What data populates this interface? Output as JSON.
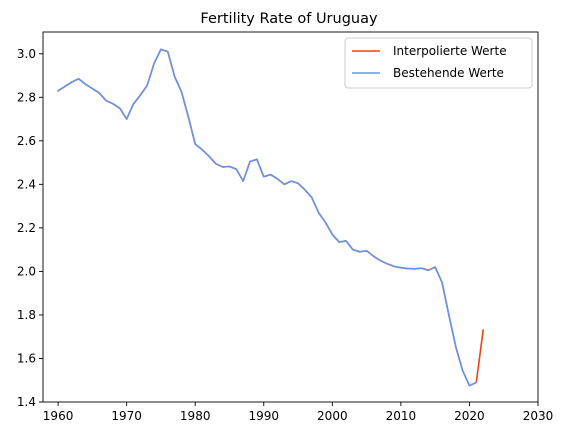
{
  "chart_data": {
    "type": "line",
    "title": "Fertility Rate of Uruguay",
    "xlabel": "",
    "ylabel": "",
    "xlim": [
      1957.8,
      2030
    ],
    "ylim": [
      1.4,
      3.1
    ],
    "xticks": [
      1960,
      1970,
      1980,
      1990,
      2000,
      2010,
      2020,
      2030
    ],
    "yticks": [
      1.4,
      1.6,
      1.8,
      2.0,
      2.2,
      2.4,
      2.6,
      2.8,
      3.0
    ],
    "xtick_labels": [
      "1960",
      "1970",
      "1980",
      "1990",
      "2000",
      "2010",
      "2020",
      "2030"
    ],
    "ytick_labels": [
      "1.4",
      "1.6",
      "1.8",
      "2.0",
      "2.2",
      "2.4",
      "2.6",
      "2.8",
      "3.0"
    ],
    "grid": false,
    "legend_position": "top-right",
    "series": [
      {
        "name": "Interpolierte Werte",
        "color": "#ee4411",
        "x": [
          1960,
          1961,
          1962,
          1963,
          1964,
          1965,
          1966,
          1967,
          1968,
          1969,
          1970,
          1971,
          1972,
          1973,
          1974,
          1975,
          1976,
          1977,
          1978,
          1979,
          1980,
          1981,
          1982,
          1983,
          1984,
          1985,
          1986,
          1987,
          1988,
          1989,
          1990,
          1991,
          1992,
          1993,
          1994,
          1995,
          1996,
          1997,
          1998,
          1999,
          2000,
          2001,
          2002,
          2003,
          2004,
          2005,
          2006,
          2007,
          2008,
          2009,
          2010,
          2011,
          2012,
          2013,
          2014,
          2015,
          2016,
          2017,
          2018,
          2019,
          2020,
          2021,
          2022
        ],
        "y": [
          2.83,
          2.85,
          2.87,
          2.885,
          2.86,
          2.84,
          2.82,
          2.785,
          2.77,
          2.75,
          2.7,
          2.77,
          2.81,
          2.855,
          2.955,
          3.02,
          3.01,
          2.895,
          2.825,
          2.71,
          2.585,
          2.56,
          2.53,
          2.495,
          2.48,
          2.482,
          2.47,
          2.415,
          2.505,
          2.515,
          2.435,
          2.445,
          2.425,
          2.4,
          2.415,
          2.405,
          2.375,
          2.34,
          2.27,
          2.225,
          2.17,
          2.135,
          2.14,
          2.1,
          2.09,
          2.095,
          2.07,
          2.05,
          2.035,
          2.023,
          2.017,
          2.013,
          2.012,
          2.015,
          2.005,
          2.02,
          1.95,
          1.8,
          1.655,
          1.545,
          1.475,
          1.49,
          1.73
        ]
      },
      {
        "name": "Bestehende Werte",
        "color": "#6495ed",
        "x": [
          1960,
          1961,
          1962,
          1963,
          1964,
          1965,
          1966,
          1967,
          1968,
          1969,
          1970,
          1971,
          1972,
          1973,
          1974,
          1975,
          1976,
          1977,
          1978,
          1979,
          1980,
          1981,
          1982,
          1983,
          1984,
          1985,
          1986,
          1987,
          1988,
          1989,
          1990,
          1991,
          1992,
          1993,
          1994,
          1995,
          1996,
          1997,
          1998,
          1999,
          2000,
          2001,
          2002,
          2003,
          2004,
          2005,
          2006,
          2007,
          2008,
          2009,
          2010,
          2011,
          2012,
          2013,
          2014,
          2015,
          2016,
          2017,
          2018,
          2019,
          2020,
          2021
        ],
        "y": [
          2.83,
          2.85,
          2.87,
          2.885,
          2.86,
          2.84,
          2.82,
          2.785,
          2.77,
          2.75,
          2.7,
          2.77,
          2.81,
          2.855,
          2.955,
          3.02,
          3.01,
          2.895,
          2.825,
          2.71,
          2.585,
          2.56,
          2.53,
          2.495,
          2.48,
          2.482,
          2.47,
          2.415,
          2.505,
          2.515,
          2.435,
          2.445,
          2.425,
          2.4,
          2.415,
          2.405,
          2.375,
          2.34,
          2.27,
          2.225,
          2.17,
          2.135,
          2.14,
          2.1,
          2.09,
          2.095,
          2.07,
          2.05,
          2.035,
          2.023,
          2.017,
          2.013,
          2.012,
          2.015,
          2.005,
          2.02,
          1.95,
          1.8,
          1.655,
          1.545,
          1.475,
          1.49
        ]
      }
    ]
  }
}
